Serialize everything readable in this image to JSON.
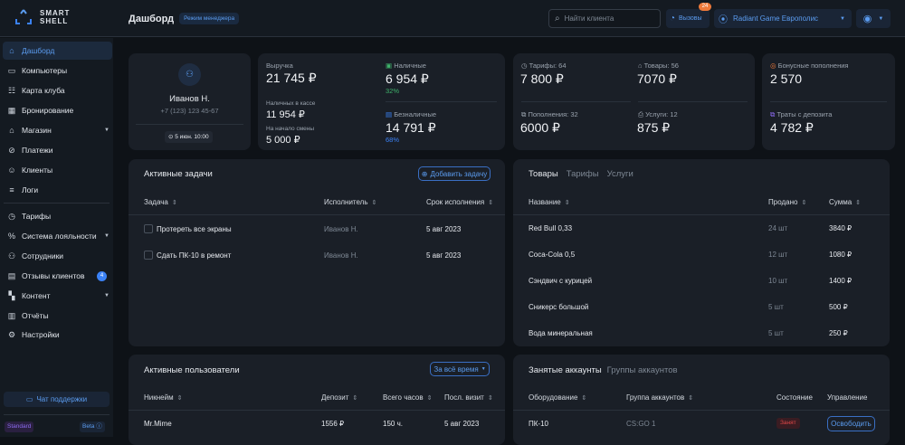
{
  "app": {
    "logo_line1": "SMART",
    "logo_line2": "SHELL"
  },
  "header": {
    "title": "Дашборд",
    "mode_badge": "Режим менеджера",
    "search_placeholder": "Найти клиента",
    "calls_label": "Вызовы",
    "calls_count": "24",
    "club": "Radiant Game Европолис"
  },
  "sidebar": {
    "items": [
      {
        "label": "Дашборд",
        "icon": "home-icon",
        "active": true
      },
      {
        "label": "Компьютеры",
        "icon": "monitor-icon"
      },
      {
        "label": "Карта клуба",
        "icon": "map-grid-icon"
      },
      {
        "label": "Бронирование",
        "icon": "calendar-icon"
      },
      {
        "label": "Магазин",
        "icon": "store-icon",
        "chevron": true
      },
      {
        "label": "Платежи",
        "icon": "payment-icon"
      },
      {
        "label": "Клиенты",
        "icon": "client-icon"
      },
      {
        "label": "Логи",
        "icon": "logs-icon"
      },
      {
        "label": "Тарифы",
        "icon": "clock-icon"
      },
      {
        "label": "Система лояльности",
        "icon": "percent-icon",
        "chevron": true
      },
      {
        "label": "Сотрудники",
        "icon": "staff-icon"
      },
      {
        "label": "Отзывы клиентов",
        "icon": "message-icon",
        "badge": "4"
      },
      {
        "label": "Контент",
        "icon": "grid-icon",
        "chevron": true
      },
      {
        "label": "Отчёты",
        "icon": "chart-icon"
      },
      {
        "label": "Настройки",
        "icon": "gear-icon"
      }
    ],
    "support": "Чат поддержки",
    "plan": "Standard",
    "beta": "Beta"
  },
  "profile": {
    "name": "Иванов Н.",
    "phone": "+7 (123) 123 45-67",
    "shift": "5 июн. 10:00"
  },
  "revenue": {
    "label": "Выручка",
    "value": "21 745 ₽",
    "cash_in_box_label": "Наличных в кассе",
    "cash_in_box": "11 954 ₽",
    "shift_start_label": "На начало смены",
    "shift_start": "5 000 ₽",
    "cash_label": "Наличные",
    "cash": "6 954 ₽",
    "cash_pct": "32%",
    "cashless_label": "Безналичные",
    "cashless": "14 791 ₽",
    "cashless_pct": "68%"
  },
  "stats": {
    "tariffs_label": "Тарифы: 64",
    "tariffs": "7 800 ₽",
    "goods_label": "Товары: 56",
    "goods": "7070 ₽",
    "topups_label": "Пополнения: 32",
    "topups": "6000 ₽",
    "services_label": "Услуги: 12",
    "services": "875 ₽",
    "bonus_label": "Бонусные пополнения",
    "bonus": "2 570",
    "deposit_label": "Траты с депозита",
    "deposit": "4 782 ₽"
  },
  "tasks": {
    "title": "Активные задачи",
    "add": "Добавить задачу",
    "cols": [
      "Задача",
      "Исполнитель",
      "Срок исполнения"
    ],
    "rows": [
      [
        "Протереть все экраны",
        "Иванов Н.",
        "5 авг 2023"
      ],
      [
        "Сдать ПК-10 в ремонт",
        "Иванов Н.",
        "5 авг 2023"
      ]
    ]
  },
  "goods": {
    "tabs": [
      "Товары",
      "Тарифы",
      "Услуги"
    ],
    "cols": [
      "Название",
      "Продано",
      "Сумма"
    ],
    "rows": [
      [
        "Red Bull 0,33",
        "24 шт",
        "3840 ₽"
      ],
      [
        "Coca-Cola 0,5",
        "12 шт",
        "1080 ₽"
      ],
      [
        "Сэндвич с курицей",
        "10 шт",
        "1400 ₽"
      ],
      [
        "Сникерс большой",
        "5  шт",
        "500 ₽"
      ],
      [
        "Вода минеральная",
        "5 шт",
        "250 ₽"
      ]
    ]
  },
  "users": {
    "title": "Активные пользователи",
    "period": "За всё время",
    "cols": [
      "Никнейм",
      "Депозит",
      "Всего часов",
      "Посл. визит"
    ],
    "rows": [
      [
        "Mr.Mime",
        "1556 ₽",
        "150 ч.",
        "5 авг 2023"
      ]
    ]
  },
  "accounts": {
    "tabs": [
      "Занятые аккаунты",
      "Группы аккаунтов"
    ],
    "cols": [
      "Оборудование",
      "Группа аккаунтов",
      "Состояние",
      "Управление"
    ],
    "rows": [
      [
        "ПК-10",
        "CS:GO 1",
        "Занят",
        "Освободить"
      ]
    ]
  },
  "colors": {
    "accent": "#3b82f6",
    "positive": "#3fb36b",
    "busy": "#e04848",
    "calls_badge": "#f07a3a"
  }
}
